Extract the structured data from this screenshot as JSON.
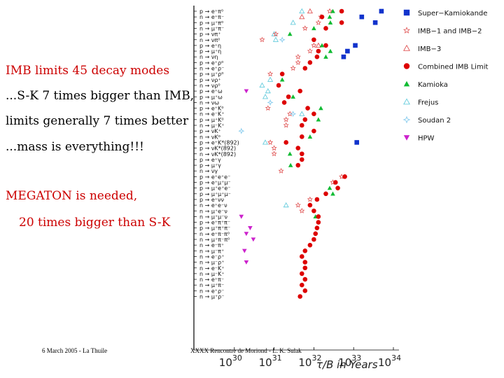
{
  "text_lines": [
    {
      "text": "IMB limits 45 decay modes",
      "color": "red"
    },
    {
      "text": "...S-K 7 times bigger than IMB,",
      "color": "black"
    },
    {
      "text": "limits generally 7 times better",
      "color": "black"
    },
    {
      "text": "...mass is everything!!!",
      "color": "black"
    },
    {
      "text": "MEGATON is needed,",
      "color": "red"
    },
    {
      "text": "20 times bigger than S-K",
      "color": "red"
    }
  ],
  "footer": {
    "left": "6 March 2005 - La Thuile",
    "center": "XXXX Rencontre de Moriond - L. K. Sulak"
  },
  "colors": {
    "super_kamiokande": "#1133cc",
    "imb_1_2": "#e05555",
    "imb_3": "#e05555",
    "combined_imb": "#dd0000",
    "kamioka": "#11bb33",
    "frejus": "#66ccdd",
    "soudan2": "#88ccee",
    "hpw": "#cc22cc"
  },
  "chart_data": {
    "type": "scatter",
    "xlabel": "τ/B in Years",
    "x_scale": "log",
    "xlim": [
      1e+29,
      1e+34
    ],
    "x_ticks": [
      {
        "value": 1e+30,
        "base": "10",
        "exp": "30"
      },
      {
        "value": 1e+31,
        "base": "10",
        "exp": "31"
      },
      {
        "value": 1e+32,
        "base": "10",
        "exp": "32"
      },
      {
        "value": 1e+33,
        "base": "10",
        "exp": "33"
      },
      {
        "value": 1e+34,
        "base": "10",
        "exp": "34"
      }
    ],
    "legend_position": "right",
    "series": [
      {
        "key": "sk",
        "name": "Super−Kamiokande",
        "marker": "square-filled",
        "color": "#1133cc"
      },
      {
        "key": "imb12",
        "name": "IMB−1 and IMB−2",
        "marker": "star-open",
        "color": "#e05555"
      },
      {
        "key": "imb3",
        "name": "IMB−3",
        "marker": "triangle-open",
        "color": "#e05555"
      },
      {
        "key": "comb",
        "name": "Combined IMB Limit",
        "marker": "circle-filled",
        "color": "#dd0000"
      },
      {
        "key": "kam",
        "name": "Kamioka",
        "marker": "triangle-filled",
        "color": "#11bb33"
      },
      {
        "key": "frejus",
        "name": "Frejus",
        "marker": "triangle-open",
        "color": "#66ccdd"
      },
      {
        "key": "soudan",
        "name": "Soudan 2",
        "marker": "star4-open",
        "color": "#88ccee"
      },
      {
        "key": "hpw",
        "name": "HPW",
        "marker": "triangle-down-filled",
        "color": "#cc22cc"
      }
    ],
    "modes": [
      {
        "label": "p → e⁺π⁰",
        "points": {
          "frejus": 5e+31,
          "imb3": 8e+31,
          "imb12": 2.5e+32,
          "kam": 3e+32,
          "comb": 5e+32,
          "sk": 5e+33
        }
      },
      {
        "label": "n → e⁺π⁻",
        "points": {
          "imb12": 1.5e+32,
          "imb3": 5e+31,
          "kam": 2.5e+32,
          "comb": 1.6e+32,
          "sk": 1.6e+33
        }
      },
      {
        "label": "p → μ⁺π⁰",
        "points": {
          "frejus": 3e+31,
          "imb12": 1.3e+32,
          "kam": 2.6e+32,
          "comb": 5e+32,
          "sk": 3.5e+33
        }
      },
      {
        "label": "n → μ⁺π⁻",
        "points": {
          "imb12": 6e+31,
          "kam": 1e+32,
          "comb": 2e+32
        }
      },
      {
        "label": "p → νπ⁺",
        "points": {
          "frejus": 1e+31,
          "imb12": 1.1e+31,
          "kam": 2.5e+31
        }
      },
      {
        "label": "n → νπ⁰",
        "points": {
          "frejus": 1.1e+31,
          "imb12": 5e+30,
          "soudan": 1.6e+31,
          "comb": 1e+32
        }
      },
      {
        "label": "p → e⁺η",
        "points": {
          "imb12": 1e+32,
          "imb3": 1.3e+32,
          "kam": 1.6e+32,
          "comb": 2e+32,
          "sk": 1.1e+33
        }
      },
      {
        "label": "p → μ⁺η",
        "points": {
          "imb12": 8e+31,
          "comb": 1.3e+32,
          "kam": 2.6e+32,
          "sk": 7e+32
        }
      },
      {
        "label": "n → νη",
        "points": {
          "imb12": 4e+31,
          "comb": 1.2e+32,
          "kam": 2e+32,
          "sk": 5.6e+32
        }
      },
      {
        "label": "p → e⁺ρ⁰",
        "points": {
          "imb12": 4e+31,
          "comb": 8e+31
        }
      },
      {
        "label": "n → e⁺ρ⁻",
        "points": {
          "imb12": 3e+31,
          "comb": 6e+31
        }
      },
      {
        "label": "p → μ⁺ρ⁰",
        "points": {
          "imb12": 8e+30,
          "comb": 1.6e+31
        }
      },
      {
        "label": "p → νρ⁺",
        "points": {
          "frejus": 8e+30,
          "kam": 1.6e+31
        }
      },
      {
        "label": "n → νρ⁰",
        "points": {
          "frejus": 5e+30,
          "comb": 1.3e+31
        }
      },
      {
        "label": "p → e⁺ω",
        "points": {
          "hpw": 2e+30,
          "frejus": 7e+30,
          "comb": 4.5e+31
        }
      },
      {
        "label": "p → μ⁺ω",
        "points": {
          "frejus": 6e+30,
          "comb": 2.3e+31,
          "kam": 3e+31
        }
      },
      {
        "label": "n → νω",
        "points": {
          "soudan": 8e+30,
          "comb": 1.8e+31
        }
      },
      {
        "label": "p → e⁺K⁰",
        "points": {
          "imb12": 7e+30,
          "comb": 7e+31,
          "kam": 1.5e+32
        }
      },
      {
        "label": "n → e⁻K⁺",
        "points": {
          "imb12": 2.5e+31,
          "soudan": 3e+31,
          "frejus": 5e+31,
          "comb": 1e+32
        }
      },
      {
        "label": "p → μ⁺K⁰",
        "points": {
          "imb12": 2e+31,
          "comb": 6e+31,
          "kam": 1.3e+32
        }
      },
      {
        "label": "n → μ⁻K⁺",
        "points": {
          "imb12": 2e+31,
          "comb": 5e+31
        }
      },
      {
        "label": "p → νK⁺",
        "points": {
          "soudan": 1.5e+30,
          "comb": 1e+32
        }
      },
      {
        "label": "n → νK⁰",
        "points": {
          "comb": 5e+31,
          "kam": 8e+31
        }
      },
      {
        "label": "p → e⁺K*(892)",
        "points": {
          "imb12": 8e+30,
          "frejus": 6e+30,
          "comb": 2e+31,
          "sk": 1.2e+33
        }
      },
      {
        "label": "p → νK*(892)",
        "points": {
          "imb12": 1e+31,
          "comb": 4e+31
        }
      },
      {
        "label": "n → νK*(892)",
        "points": {
          "imb12": 1e+31,
          "kam": 2.5e+31,
          "comb": 5e+31
        }
      },
      {
        "label": "p → e⁺γ",
        "points": {
          "comb": 5e+31
        }
      },
      {
        "label": "p → μ⁺γ",
        "points": {
          "kam": 2.6e+31,
          "comb": 4e+31
        }
      },
      {
        "label": "n → νγ",
        "points": {
          "imb12": 1.5e+31
        }
      },
      {
        "label": "p → e⁺e⁺e⁻",
        "points": {
          "imb12": 5e+32,
          "comb": 6e+32
        }
      },
      {
        "label": "p → e⁺μ⁺μ⁻",
        "points": {
          "imb12": 3e+32,
          "comb": 3.5e+32
        }
      },
      {
        "label": "p → μ⁺e⁺e⁻",
        "points": {
          "kam": 2.5e+32,
          "comb": 4e+32
        }
      },
      {
        "label": "p → μ⁺μ⁺μ⁻",
        "points": {
          "comb": 2e+32,
          "kam": 3e+32
        }
      },
      {
        "label": "p → e⁺νν",
        "points": {
          "imb12": 8e+31,
          "comb": 1.2e+32
        }
      },
      {
        "label": "n → e⁺e⁻ν",
        "points": {
          "imb12": 4e+31,
          "frejus": 2e+31,
          "comb": 8e+31
        }
      },
      {
        "label": "n → μ⁺e⁻ν",
        "points": {
          "imb12": 5e+31,
          "comb": 1e+32
        }
      },
      {
        "label": "n → μ⁺μ⁻ν",
        "points": {
          "hpw": 1.5e+30,
          "kam": 1.1e+32,
          "comb": 1.3e+32
        }
      },
      {
        "label": "p → e⁺π⁺π⁻",
        "points": {
          "comb": 1.3e+32
        }
      },
      {
        "label": "p → μ⁺π⁺π⁻",
        "points": {
          "hpw": 2.5e+30,
          "comb": 1.2e+32
        }
      },
      {
        "label": "n → e⁺π⁻π⁰",
        "points": {
          "hpw": 2e+30,
          "comb": 1.1e+32
        }
      },
      {
        "label": "n → μ⁺π⁻π⁰",
        "points": {
          "hpw": 3e+30,
          "comb": 1e+32
        }
      },
      {
        "label": "n → e⁻π⁺",
        "points": {
          "comb": 8e+31
        }
      },
      {
        "label": "n → μ⁻π⁺",
        "points": {
          "hpw": 1.8e+30,
          "comb": 6e+31
        }
      },
      {
        "label": "n → e⁻ρ⁺",
        "points": {
          "comb": 5e+31
        }
      },
      {
        "label": "n → μ⁻ρ⁺",
        "points": {
          "hpw": 2e+30,
          "comb": 6e+31
        }
      },
      {
        "label": "n → e⁻K⁺",
        "points": {
          "comb": 6e+31
        }
      },
      {
        "label": "n → μ⁻K⁺",
        "points": {
          "comb": 5e+31
        }
      },
      {
        "label": "n → e⁺π⁻",
        "points": {
          "comb": 6e+31
        }
      },
      {
        "label": "n → μ⁺π⁻",
        "points": {
          "comb": 5e+31
        }
      },
      {
        "label": "n → e⁺ρ⁻",
        "points": {
          "comb": 6e+31
        }
      },
      {
        "label": "n → μ⁺ρ⁻",
        "points": {
          "comb": 4.5e+31
        }
      }
    ]
  }
}
